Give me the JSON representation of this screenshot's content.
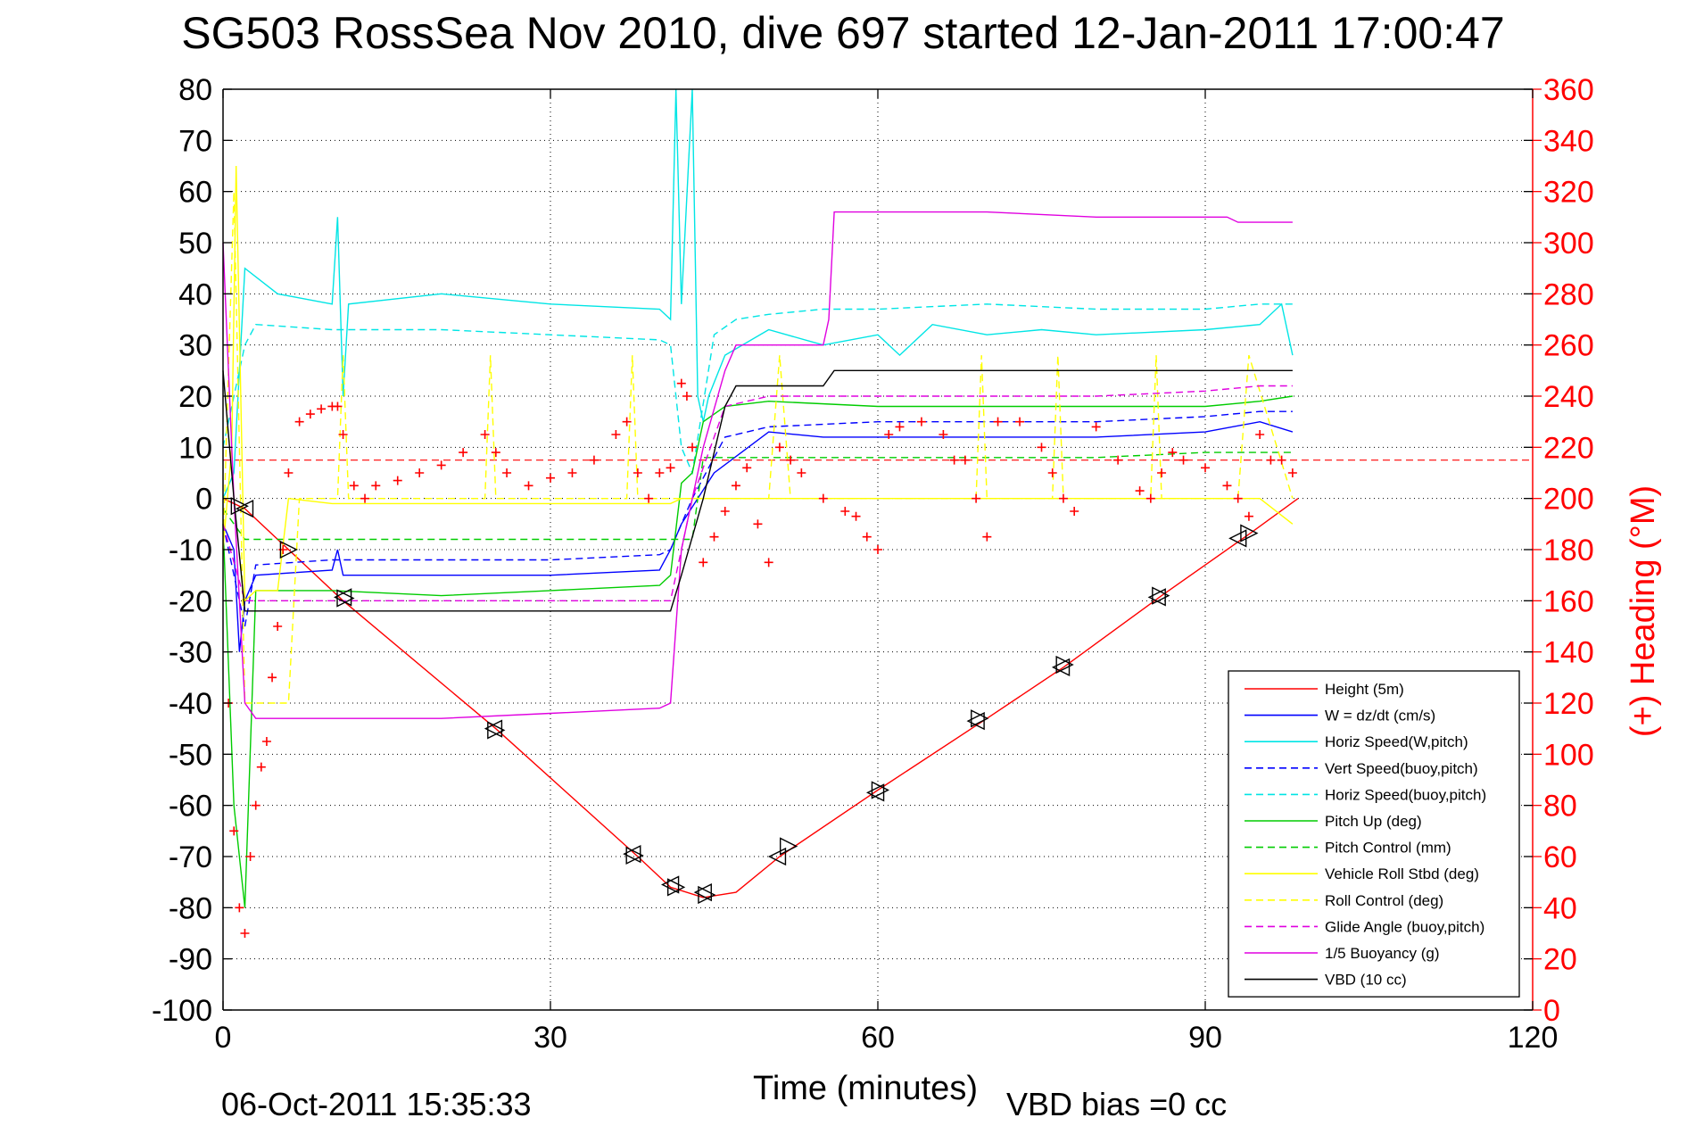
{
  "chart_data": {
    "type": "line",
    "title": "SG503 RossSea Nov 2010, dive 697 started 12-Jan-2011 17:00:47",
    "xlabel": "Time (minutes)",
    "ylabel": "",
    "ylabel_right": "(+) Heading (°M)",
    "xlim": [
      0,
      120
    ],
    "ylim": [
      -100,
      80
    ],
    "ylim_right": [
      0,
      360
    ],
    "x_ticks": [
      "0",
      "30",
      "60",
      "90",
      "120"
    ],
    "y_ticks": [
      "80",
      "70",
      "60",
      "50",
      "40",
      "30",
      "20",
      "10",
      "0",
      "-10",
      "-20",
      "-30",
      "-40",
      "-50",
      "-60",
      "-70",
      "-80",
      "-90",
      "-100"
    ],
    "y_ticks_right": [
      "360",
      "340",
      "320",
      "300",
      "280",
      "260",
      "240",
      "220",
      "200",
      "180",
      "160",
      "140",
      "120",
      "100",
      "80",
      "60",
      "40",
      "20",
      "0"
    ],
    "grid": true,
    "legend_position": "bottom-right",
    "footer_left": "06-Oct-2011 15:35:33",
    "footer_right": "VBD bias =0 cc",
    "heading_mean_line": {
      "y": 7.5,
      "color": "#ff0000"
    },
    "series": [
      {
        "name": "Height (5m)",
        "color": "#ff0000",
        "dash": "solid",
        "x": [
          0,
          2,
          11,
          25,
          38,
          41,
          44,
          47,
          51,
          60,
          70,
          77,
          86,
          94,
          98.5
        ],
        "y": [
          0,
          -2,
          -20,
          -45,
          -70,
          -76,
          -78,
          -77,
          -70,
          -57,
          -43,
          -33,
          -19,
          -7,
          0
        ]
      },
      {
        "name": "W = dz/dt (cm/s)",
        "color": "#0000ff",
        "dash": "solid",
        "x": [
          0,
          1,
          1.5,
          2,
          3,
          10,
          10.5,
          11,
          20,
          30,
          40,
          41,
          42,
          45,
          50,
          55,
          60,
          70,
          80,
          90,
          95,
          98
        ],
        "y": [
          -5,
          -10,
          -30,
          -20,
          -15,
          -14,
          -10,
          -15,
          -15,
          -15,
          -14,
          -10,
          -5,
          5,
          13,
          12,
          12,
          12,
          12,
          13,
          15,
          13
        ]
      },
      {
        "name": "Horiz Speed(W,pitch)",
        "color": "#00e5e5",
        "dash": "solid",
        "x": [
          0,
          1,
          2,
          5,
          10,
          10.5,
          11,
          11.5,
          20,
          30,
          40,
          41,
          41.5,
          42,
          43,
          43.5,
          44,
          44.5,
          46,
          50,
          55,
          60,
          62,
          65,
          70,
          75,
          80,
          90,
          95,
          97,
          98
        ],
        "y": [
          0,
          5,
          45,
          40,
          38,
          55,
          20,
          38,
          40,
          38,
          37,
          35,
          80,
          38,
          80,
          20,
          15,
          20,
          28,
          33,
          30,
          32,
          28,
          34,
          32,
          33,
          32,
          33,
          34,
          38,
          28
        ]
      },
      {
        "name": "Vert Speed(buoy,pitch)",
        "color": "#0000ff",
        "dash": "dashed",
        "x": [
          0,
          2,
          3,
          10,
          20,
          30,
          40,
          41,
          43,
          46,
          50,
          60,
          70,
          80,
          90,
          95,
          98
        ],
        "y": [
          -5,
          -25,
          -13,
          -12,
          -12,
          -12,
          -11,
          -10,
          0,
          12,
          14,
          15,
          15,
          15,
          16,
          17,
          17
        ]
      },
      {
        "name": "Horiz Speed(buoy,pitch)",
        "color": "#00e5e5",
        "dash": "dashed",
        "x": [
          0,
          2,
          3,
          10,
          20,
          30,
          40,
          41,
          42,
          43,
          45,
          47,
          50,
          55,
          60,
          70,
          80,
          90,
          95,
          98
        ],
        "y": [
          10,
          30,
          34,
          33,
          33,
          32,
          31,
          30,
          10,
          5,
          32,
          35,
          36,
          37,
          37,
          38,
          37,
          37,
          38,
          38
        ]
      },
      {
        "name": "Pitch Up (deg)",
        "color": "#00cc00",
        "dash": "solid",
        "x": [
          0,
          1,
          2,
          3,
          10,
          20,
          30,
          40,
          41,
          42,
          43,
          44,
          46,
          50,
          60,
          70,
          80,
          90,
          95,
          98
        ],
        "y": [
          -5,
          -60,
          -80,
          -18,
          -18,
          -19,
          -18,
          -17,
          -15,
          3,
          5,
          15,
          18,
          19,
          18,
          18,
          18,
          18,
          19,
          20
        ]
      },
      {
        "name": "Pitch Control (mm)",
        "color": "#00cc00",
        "dash": "dashed",
        "x": [
          0,
          2,
          3,
          10,
          20,
          30,
          40,
          41,
          43,
          44,
          45,
          50,
          60,
          70,
          80,
          90,
          95,
          98
        ],
        "y": [
          -2,
          -8,
          -8,
          -8,
          -8,
          -8,
          -8,
          -8,
          -8,
          8,
          8,
          8,
          8,
          8,
          8,
          9,
          9,
          9
        ]
      },
      {
        "name": "Vehicle Roll Stbd (deg)",
        "color": "#ffff00",
        "dash": "solid",
        "x": [
          0,
          0.8,
          1.2,
          2,
          3,
          5,
          6,
          10,
          20,
          30,
          40,
          41,
          42,
          45,
          50,
          60,
          70,
          80,
          90,
          95,
          98
        ],
        "y": [
          -10,
          10,
          65,
          -20,
          -18,
          -18,
          0,
          -1,
          -1,
          -1,
          -1,
          -1,
          0,
          0,
          0,
          0,
          0,
          0,
          0,
          0,
          -5
        ]
      },
      {
        "name": "Roll Control (deg)",
        "color": "#ffff00",
        "dash": "dashed",
        "x": [
          0,
          1,
          2,
          5,
          6,
          7,
          10.5,
          11,
          11.5,
          24,
          24.5,
          25,
          37,
          37.5,
          38,
          50,
          51,
          52,
          69,
          69.5,
          70,
          76,
          76.5,
          77,
          85,
          85.5,
          86,
          93,
          94,
          98
        ],
        "y": [
          -10,
          60,
          -40,
          -40,
          -40,
          0,
          0,
          28,
          0,
          0,
          28,
          0,
          0,
          28,
          0,
          0,
          28,
          0,
          0,
          28,
          0,
          0,
          28,
          0,
          0,
          28,
          0,
          0,
          28,
          0
        ]
      },
      {
        "name": "Glide Angle (buoy,pitch)",
        "color": "#e000e0",
        "dash": "dashed",
        "x": [
          0,
          2,
          3,
          10,
          20,
          30,
          40,
          41,
          43,
          46,
          50,
          60,
          70,
          80,
          90,
          95,
          98
        ],
        "y": [
          -5,
          -20,
          -20,
          -20,
          -20,
          -20,
          -20,
          -20,
          0,
          18,
          20,
          20,
          20,
          20,
          21,
          22,
          22
        ]
      },
      {
        "name": "1/5 Buoyancy (g)",
        "color": "#e000e0",
        "dash": "solid",
        "x": [
          0,
          1,
          2,
          3,
          10,
          20,
          30,
          40,
          41,
          42,
          44,
          46,
          47,
          50,
          55,
          55.5,
          56,
          60,
          70,
          80,
          90,
          92,
          93,
          95,
          98
        ],
        "y": [
          50,
          0,
          -40,
          -43,
          -43,
          -43,
          -42,
          -41,
          -40,
          -10,
          10,
          25,
          30,
          30,
          30,
          35,
          56,
          56,
          56,
          55,
          55,
          55,
          54,
          54,
          54
        ]
      },
      {
        "name": "VBD (10 cc)",
        "color": "#000000",
        "dash": "solid",
        "x": [
          0,
          1,
          2,
          3,
          10,
          20,
          30,
          40,
          41,
          42,
          44,
          46,
          47,
          50,
          55,
          56,
          60,
          70,
          80,
          90,
          95,
          98
        ],
        "y": [
          25,
          0,
          -22,
          -22,
          -22,
          -22,
          -22,
          -22,
          -22,
          -15,
          0,
          18,
          22,
          22,
          22,
          25,
          25,
          25,
          25,
          25,
          25,
          25
        ]
      }
    ],
    "heading_series": {
      "name": "(+) Heading",
      "color": "#ff0000",
      "marker": "+",
      "x": [
        0.5,
        1,
        1.5,
        2,
        2.5,
        3,
        3.5,
        4,
        4.5,
        5,
        5.5,
        6,
        7,
        8,
        9,
        10,
        10.5,
        11,
        12,
        13,
        14,
        16,
        18,
        20,
        22,
        24,
        25,
        26,
        28,
        30,
        32,
        34,
        36,
        37,
        38,
        39,
        40,
        41,
        42,
        42.5,
        43,
        44,
        45,
        46,
        47,
        48,
        49,
        50,
        51,
        52,
        53,
        55,
        57,
        58,
        59,
        60,
        61,
        62,
        64,
        66,
        67,
        68,
        69,
        70,
        71,
        73,
        75,
        76,
        77,
        78,
        80,
        82,
        84,
        85,
        86,
        87,
        88,
        90,
        92,
        93,
        94,
        95,
        96,
        97,
        98
      ],
      "y": [
        120,
        70,
        40,
        30,
        60,
        80,
        95,
        105,
        130,
        150,
        180,
        210,
        230,
        233,
        235,
        236,
        236,
        225,
        205,
        200,
        205,
        207,
        210,
        213,
        218,
        225,
        218,
        210,
        205,
        208,
        210,
        215,
        225,
        230,
        210,
        200,
        210,
        212,
        245,
        240,
        220,
        175,
        185,
        195,
        205,
        212,
        190,
        175,
        220,
        215,
        210,
        200,
        195,
        193,
        185,
        180,
        225,
        228,
        230,
        225,
        215,
        215,
        200,
        185,
        230,
        230,
        220,
        210,
        200,
        195,
        228,
        215,
        203,
        200,
        210,
        218,
        215,
        212,
        205,
        200,
        193,
        225,
        215,
        215,
        210
      ]
    },
    "turn_markers": {
      "x": [
        1.5,
        2,
        6,
        11,
        11.2,
        24.8,
        25,
        37.5,
        37.7,
        41,
        41.5,
        44,
        44.3,
        50.8,
        51.8,
        59.8,
        60.2,
        69,
        69.3,
        76.8,
        77.1,
        85.6,
        85.9,
        93,
        94
      ],
      "y": [
        -1.5,
        -2,
        -10,
        -19.3,
        -19.5,
        -45,
        -45.3,
        -69.5,
        -69.8,
        -75.5,
        -76,
        -77,
        -77.5,
        -70,
        -68,
        -57.5,
        -57,
        -43.5,
        -43,
        -33,
        -32.5,
        -19.3,
        -19,
        -7.8,
        -6.8
      ]
    }
  }
}
